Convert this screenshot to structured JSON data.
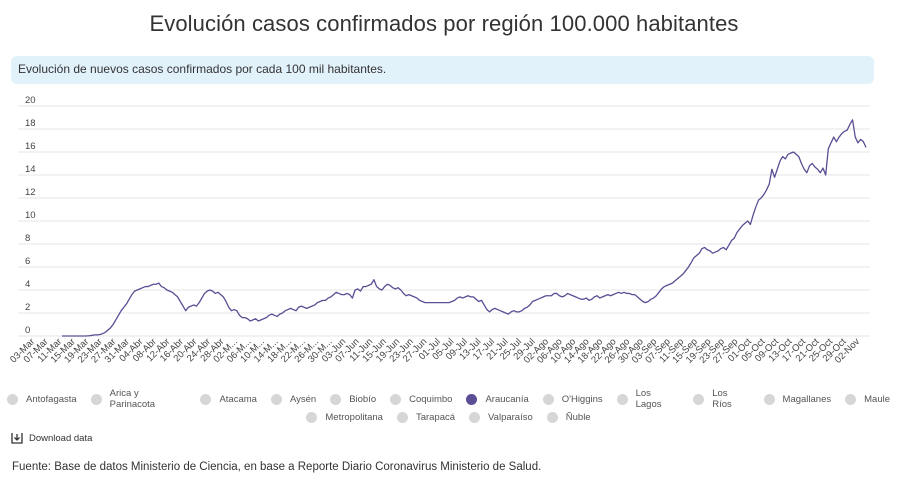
{
  "page": {
    "title": "Evolución casos confirmados por región 100.000 habitantes",
    "subtitle": "Evolución de nuevos casos confirmados por cada 100 mil habitantes.",
    "download_label": "Download data",
    "source": "Fuente: Base de datos Ministerio de Ciencia, en base a Reporte Diario Coronavirus Ministerio de Salud."
  },
  "legend": {
    "row1": [
      {
        "label": "Antofagasta",
        "active": false
      },
      {
        "label": "Arica y Parinacota",
        "active": false
      },
      {
        "label": "Atacama",
        "active": false
      },
      {
        "label": "Aysén",
        "active": false
      },
      {
        "label": "Biobío",
        "active": false
      },
      {
        "label": "Coquimbo",
        "active": false
      },
      {
        "label": "Araucanía",
        "active": true
      },
      {
        "label": "O'Higgins",
        "active": false
      },
      {
        "label": "Los Lagos",
        "active": false
      },
      {
        "label": "Los Ríos",
        "active": false
      },
      {
        "label": "Magallanes",
        "active": false
      },
      {
        "label": "Maule",
        "active": false
      }
    ],
    "row2": [
      {
        "label": "Metropolitana",
        "active": false
      },
      {
        "label": "Tarapacá",
        "active": false
      },
      {
        "label": "Valparaíso",
        "active": false
      },
      {
        "label": "Ñuble",
        "active": false
      }
    ]
  },
  "chart_data": {
    "type": "line",
    "title": "Evolución casos confirmados por región 100.000 habitantes",
    "ylim": [
      0,
      20
    ],
    "y_ticks": [
      0,
      2,
      4,
      6,
      8,
      10,
      12,
      14,
      16,
      18,
      20
    ],
    "x_tick_labels": [
      "03-Mar",
      "07-Mar",
      "11-Mar",
      "15-Mar",
      "19-Mar",
      "23-Mar",
      "27-Mar",
      "31-Mar",
      "04-Abr",
      "08-Abr",
      "12-Abr",
      "16-Abr",
      "20-Abr",
      "24-Abr",
      "28-Abr",
      "02-M...",
      "06-M...",
      "10-M...",
      "14-M...",
      "18-M...",
      "22-M...",
      "26-M...",
      "30-M...",
      "03-Jun",
      "07-Jun",
      "11-Jun",
      "15-Jun",
      "19-Jun",
      "23-Jun",
      "27-Jun",
      "01-Jul",
      "05-Jul",
      "09-Jul",
      "13-Jul",
      "17-Jul",
      "21-Jul",
      "25-Jul",
      "29-Jul",
      "02-Ago",
      "06-Ago",
      "10-Ago",
      "14-Ago",
      "18-Ago",
      "22-Ago",
      "26-Ago",
      "30-Ago",
      "03-Sep",
      "07-Sep",
      "11-Sep",
      "15-Sep",
      "19-Sep",
      "23-Sep",
      "27-Sep",
      "01-Oct",
      "05-Oct",
      "09-Oct",
      "13-Oct",
      "17-Oct",
      "21-Oct",
      "25-Oct",
      "29-Oct",
      "02-Nov"
    ],
    "grid": "horizontal",
    "line_color": "#5c4d94",
    "series": [
      {
        "name": "Araucanía",
        "values": [
          0,
          0,
          0,
          0,
          0,
          0,
          0,
          0,
          0,
          0,
          0.02,
          0.05,
          0.1,
          0.1,
          0.12,
          0.2,
          0.3,
          0.5,
          0.7,
          1.0,
          1.4,
          1.8,
          2.2,
          2.5,
          2.8,
          3.2,
          3.6,
          3.9,
          4.0,
          4.1,
          4.2,
          4.3,
          4.3,
          4.4,
          4.5,
          4.5,
          4.6,
          4.3,
          4.2,
          4.0,
          3.9,
          3.8,
          3.6,
          3.4,
          3.0,
          2.6,
          2.2,
          2.5,
          2.6,
          2.7,
          2.6,
          2.9,
          3.3,
          3.7,
          3.9,
          4.0,
          3.9,
          3.7,
          3.8,
          3.6,
          3.4,
          3.0,
          2.5,
          2.2,
          2.3,
          2.2,
          1.8,
          1.6,
          1.6,
          1.5,
          1.3,
          1.4,
          1.5,
          1.3,
          1.4,
          1.5,
          1.6,
          1.8,
          1.9,
          1.8,
          1.7,
          1.9,
          2.0,
          2.2,
          2.3,
          2.4,
          2.3,
          2.2,
          2.5,
          2.6,
          2.5,
          2.4,
          2.5,
          2.6,
          2.7,
          2.9,
          3.0,
          3.1,
          3.1,
          3.3,
          3.4,
          3.6,
          3.8,
          3.7,
          3.6,
          3.6,
          3.7,
          3.6,
          3.3,
          4.0,
          4.1,
          3.9,
          4.3,
          4.3,
          4.4,
          4.5,
          4.9,
          4.3,
          4.1,
          4.0,
          4.3,
          4.5,
          4.4,
          4.2,
          4.1,
          4.2,
          4.0,
          3.7,
          3.5,
          3.6,
          3.5,
          3.4,
          3.3,
          3.1,
          3.0,
          2.9,
          2.9,
          2.9,
          2.9,
          2.9,
          2.9,
          2.9,
          2.9,
          2.9,
          2.9,
          3.0,
          3.1,
          3.3,
          3.4,
          3.3,
          3.4,
          3.5,
          3.4,
          3.4,
          3.2,
          3.0,
          3.1,
          2.7,
          2.3,
          2.1,
          2.3,
          2.4,
          2.3,
          2.2,
          2.1,
          2.0,
          1.9,
          2.1,
          2.2,
          2.1,
          2.1,
          2.2,
          2.4,
          2.5,
          2.7,
          3.0,
          3.1,
          3.2,
          3.3,
          3.4,
          3.5,
          3.5,
          3.5,
          3.7,
          3.7,
          3.5,
          3.4,
          3.5,
          3.7,
          3.6,
          3.5,
          3.4,
          3.3,
          3.2,
          3.2,
          3.3,
          3.1,
          3.2,
          3.4,
          3.5,
          3.3,
          3.4,
          3.5,
          3.6,
          3.5,
          3.6,
          3.7,
          3.8,
          3.7,
          3.8,
          3.7,
          3.7,
          3.6,
          3.6,
          3.4,
          3.2,
          3.0,
          2.9,
          3.0,
          3.2,
          3.3,
          3.5,
          3.8,
          4.1,
          4.3,
          4.4,
          4.5,
          4.6,
          4.8,
          5.0,
          5.2,
          5.4,
          5.7,
          6.0,
          6.4,
          6.8,
          7.0,
          7.2,
          7.6,
          7.7,
          7.5,
          7.4,
          7.2,
          7.3,
          7.4,
          7.6,
          7.7,
          7.5,
          7.9,
          8.3,
          8.5,
          9.0,
          9.3,
          9.6,
          9.8,
          10.0,
          9.7,
          10.5,
          11.2,
          11.8,
          12.0,
          12.3,
          12.7,
          13.2,
          14.5,
          13.8,
          14.5,
          15.2,
          15.6,
          15.4,
          15.8,
          15.9,
          16.0,
          15.8,
          15.6,
          15.0,
          14.5,
          14.2,
          14.8,
          15.0,
          14.7,
          14.5,
          14.2,
          14.6,
          14.0,
          16.3,
          16.8,
          17.3,
          16.9,
          17.3,
          17.6,
          17.8,
          17.9,
          18.4,
          18.8,
          17.3,
          16.8,
          17.1,
          16.9,
          16.4
        ]
      }
    ]
  }
}
